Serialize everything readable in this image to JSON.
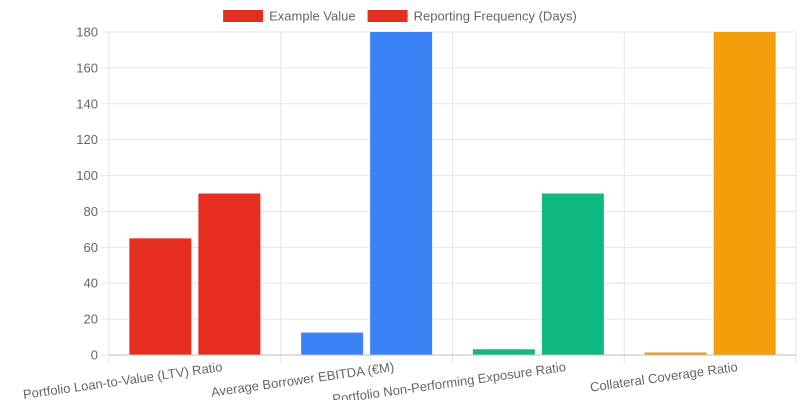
{
  "chart_data": {
    "type": "bar",
    "categories": [
      "Portfolio Loan-to-Value (LTV) Ratio",
      "Average Borrower EBITDA (€M)",
      "Portfolio Non-Performing Exposure Ratio",
      "Collateral Coverage Ratio"
    ],
    "series": [
      {
        "name": "Example Value",
        "values": [
          65,
          12.5,
          3.2,
          1.4
        ]
      },
      {
        "name": "Reporting Frequency (Days)",
        "values": [
          90,
          180,
          90,
          180
        ]
      }
    ],
    "category_colors": [
      "#e52d20",
      "#3b82f6",
      "#10b981",
      "#f59e0b"
    ],
    "legend_colors": [
      "#e52d20",
      "#e52d20"
    ],
    "ylim": [
      0,
      180
    ],
    "yticks": [
      0,
      20,
      40,
      60,
      80,
      100,
      120,
      140,
      160,
      180
    ],
    "grid": true,
    "legend_position": "top-center",
    "title": "",
    "xlabel": "",
    "ylabel": ""
  }
}
